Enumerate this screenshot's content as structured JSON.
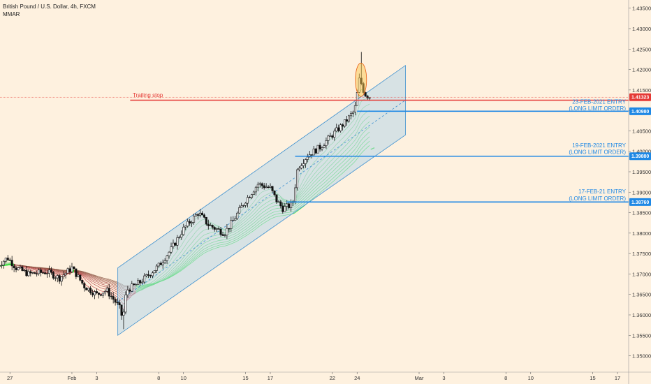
{
  "header": {
    "title": "British Pound / U.S. Dollar, 4h, FXCM",
    "indicator": "MMAR"
  },
  "chart_data": {
    "type": "candlestick",
    "symbol": "GBPUSD",
    "ylim": [
      1.346,
      1.437
    ],
    "y_ticks": [
      "1.43500",
      "1.43000",
      "1.42500",
      "1.42000",
      "1.41500",
      "1.41000",
      "1.40500",
      "1.40000",
      "1.39500",
      "1.39000",
      "1.38500",
      "1.38000",
      "1.37500",
      "1.37000",
      "1.36500",
      "1.36000",
      "1.35500",
      "1.35000"
    ],
    "x_ticks": [
      "27",
      "Feb",
      "3",
      "8",
      "10",
      "15",
      "17",
      "22",
      "24",
      "Mar",
      "3",
      "8",
      "10",
      "15",
      "17"
    ],
    "x_tick_days": [
      -5,
      0,
      2,
      7,
      9,
      14,
      16,
      21,
      23,
      28,
      30,
      35,
      37,
      42,
      44
    ],
    "x_range_days": [
      -5.8,
      44.9
    ],
    "candles_summary": {
      "path": [
        {
          "day": -6.0,
          "price": 1.372
        },
        {
          "day": -5.2,
          "price": 1.374
        },
        {
          "day": -4.5,
          "price": 1.3715
        },
        {
          "day": -3.5,
          "price": 1.37
        },
        {
          "day": -2.0,
          "price": 1.3705
        },
        {
          "day": -1.0,
          "price": 1.369
        },
        {
          "day": 0.0,
          "price": 1.3715
        },
        {
          "day": 1.0,
          "price": 1.367
        },
        {
          "day": 2.0,
          "price": 1.365
        },
        {
          "day": 2.8,
          "price": 1.366
        },
        {
          "day": 3.8,
          "price": 1.362
        },
        {
          "day": 4.1,
          "price": 1.359
        },
        {
          "day": 4.4,
          "price": 1.366
        },
        {
          "day": 5.5,
          "price": 1.368
        },
        {
          "day": 7.0,
          "price": 1.372
        },
        {
          "day": 8.0,
          "price": 1.376
        },
        {
          "day": 9.0,
          "price": 1.381
        },
        {
          "day": 10.2,
          "price": 1.385
        },
        {
          "day": 11.0,
          "price": 1.382
        },
        {
          "day": 12.3,
          "price": 1.38
        },
        {
          "day": 13.0,
          "price": 1.383
        },
        {
          "day": 14.0,
          "price": 1.388
        },
        {
          "day": 15.0,
          "price": 1.392
        },
        {
          "day": 16.0,
          "price": 1.391
        },
        {
          "day": 16.5,
          "price": 1.388
        },
        {
          "day": 17.0,
          "price": 1.386
        },
        {
          "day": 17.8,
          "price": 1.387
        },
        {
          "day": 18.2,
          "price": 1.396
        },
        {
          "day": 19.0,
          "price": 1.399
        },
        {
          "day": 20.0,
          "price": 1.401
        },
        {
          "day": 21.0,
          "price": 1.404
        },
        {
          "day": 22.0,
          "price": 1.407
        },
        {
          "day": 22.8,
          "price": 1.41
        },
        {
          "day": 23.2,
          "price": 1.418
        },
        {
          "day": 23.6,
          "price": 1.414
        },
        {
          "day": 24.1,
          "price": 1.4132
        }
      ],
      "post_spike_high": 1.4243,
      "feb4_low": 1.3565
    },
    "current_price": {
      "value": "1.41323",
      "color": "#e53935"
    },
    "price_labels": [
      {
        "value": "1.40980",
        "color": "#1e88e5"
      },
      {
        "value": "1.39880",
        "color": "#1e88e5"
      },
      {
        "value": "1.38760",
        "color": "#1e88e5"
      }
    ],
    "horizontal_lines": [
      {
        "price": 1.4098,
        "from_day": 23.0,
        "to_day": 44.9,
        "color": "#1e88e5"
      },
      {
        "price": 1.3988,
        "from_day": 18.0,
        "to_day": 44.9,
        "color": "#1e88e5"
      },
      {
        "price": 1.3876,
        "from_day": 17.3,
        "to_day": 44.9,
        "color": "#1e88e5"
      },
      {
        "price": 1.4125,
        "from_day": 4.7,
        "to_day": 44.9,
        "color": "#e53935"
      }
    ],
    "channel": {
      "upper": [
        {
          "day": 3.7,
          "price": 1.3715
        },
        {
          "day": 26.9,
          "price": 1.421
        }
      ],
      "lower": [
        {
          "day": 3.7,
          "price": 1.355
        },
        {
          "day": 26.9,
          "price": 1.404
        }
      ],
      "mid": [
        {
          "day": 3.7,
          "price": 1.3632
        },
        {
          "day": 26.9,
          "price": 1.4125
        }
      ],
      "fill": "#b7d6e8",
      "stroke": "#3a8fd0"
    },
    "annotations": [
      {
        "text": "Trailing stop",
        "color": "#e53935",
        "anchor_day": 4.9,
        "price": 1.4136
      },
      {
        "text": "23-FEB-2021 ENTRY",
        "color": "#1e88e5",
        "price": 1.4122
      },
      {
        "text": "(LONG LIMIT ORDER)",
        "color": "#1e88e5",
        "price": 1.4105
      },
      {
        "text": "19-FEB-2021 ENTRY",
        "color": "#1e88e5",
        "price": 1.4015
      },
      {
        "text": "(LONG LIMIT ORDER)",
        "color": "#1e88e5",
        "price": 1.3999
      },
      {
        "text": "17-FEB-21 ENTRY",
        "color": "#1e88e5",
        "price": 1.3902
      },
      {
        "text": "(LONG LIMIT ORDER)",
        "color": "#1e88e5",
        "price": 1.3885
      }
    ],
    "highlight_circle": {
      "day": 23.2,
      "price": 1.4175,
      "color": "#f9c74f"
    },
    "ribbon_colors": {
      "bullish": "#35e035",
      "bearish": "#c0392b"
    }
  }
}
